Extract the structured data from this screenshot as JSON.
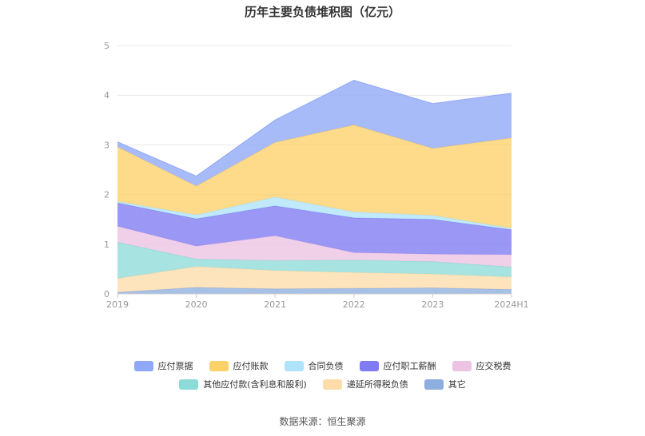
{
  "title": "历年主要负债堆积图（亿元）",
  "source": "数据来源：恒生聚源",
  "chart_data": {
    "type": "area",
    "stacked": true,
    "categories": [
      "2019",
      "2020",
      "2021",
      "2022",
      "2023",
      "2024H1"
    ],
    "ylim": [
      0,
      5
    ],
    "yticks": [
      "0",
      "1",
      "2",
      "3",
      "4",
      "5"
    ],
    "grid": true,
    "legend_position": "bottom",
    "series": [
      {
        "name": "应付票据",
        "color": "#8fa8f7",
        "values": [
          0.1,
          0.2,
          0.45,
          0.9,
          0.9,
          0.9
        ]
      },
      {
        "name": "应付账款",
        "color": "#fcd16a",
        "values": [
          1.1,
          0.58,
          1.1,
          1.75,
          1.35,
          1.82
        ]
      },
      {
        "name": "合同负债",
        "color": "#aee3fa",
        "values": [
          0.03,
          0.08,
          0.18,
          0.12,
          0.08,
          0.03
        ]
      },
      {
        "name": "应付职工薪酬",
        "color": "#7f7bf2",
        "values": [
          0.47,
          0.55,
          0.6,
          0.7,
          0.7,
          0.5
        ]
      },
      {
        "name": "应交税费",
        "color": "#ecc3e3",
        "values": [
          0.32,
          0.26,
          0.5,
          0.15,
          0.15,
          0.25
        ]
      },
      {
        "name": "其他应付款(含利息和股利)",
        "color": "#8ddbd8",
        "values": [
          0.73,
          0.15,
          0.2,
          0.25,
          0.25,
          0.2
        ]
      },
      {
        "name": "递延所得税负债",
        "color": "#fddcaa",
        "values": [
          0.28,
          0.42,
          0.37,
          0.32,
          0.28,
          0.25
        ]
      },
      {
        "name": "其它",
        "color": "#8eaedf",
        "values": [
          0.03,
          0.13,
          0.1,
          0.11,
          0.12,
          0.09
        ]
      }
    ]
  }
}
